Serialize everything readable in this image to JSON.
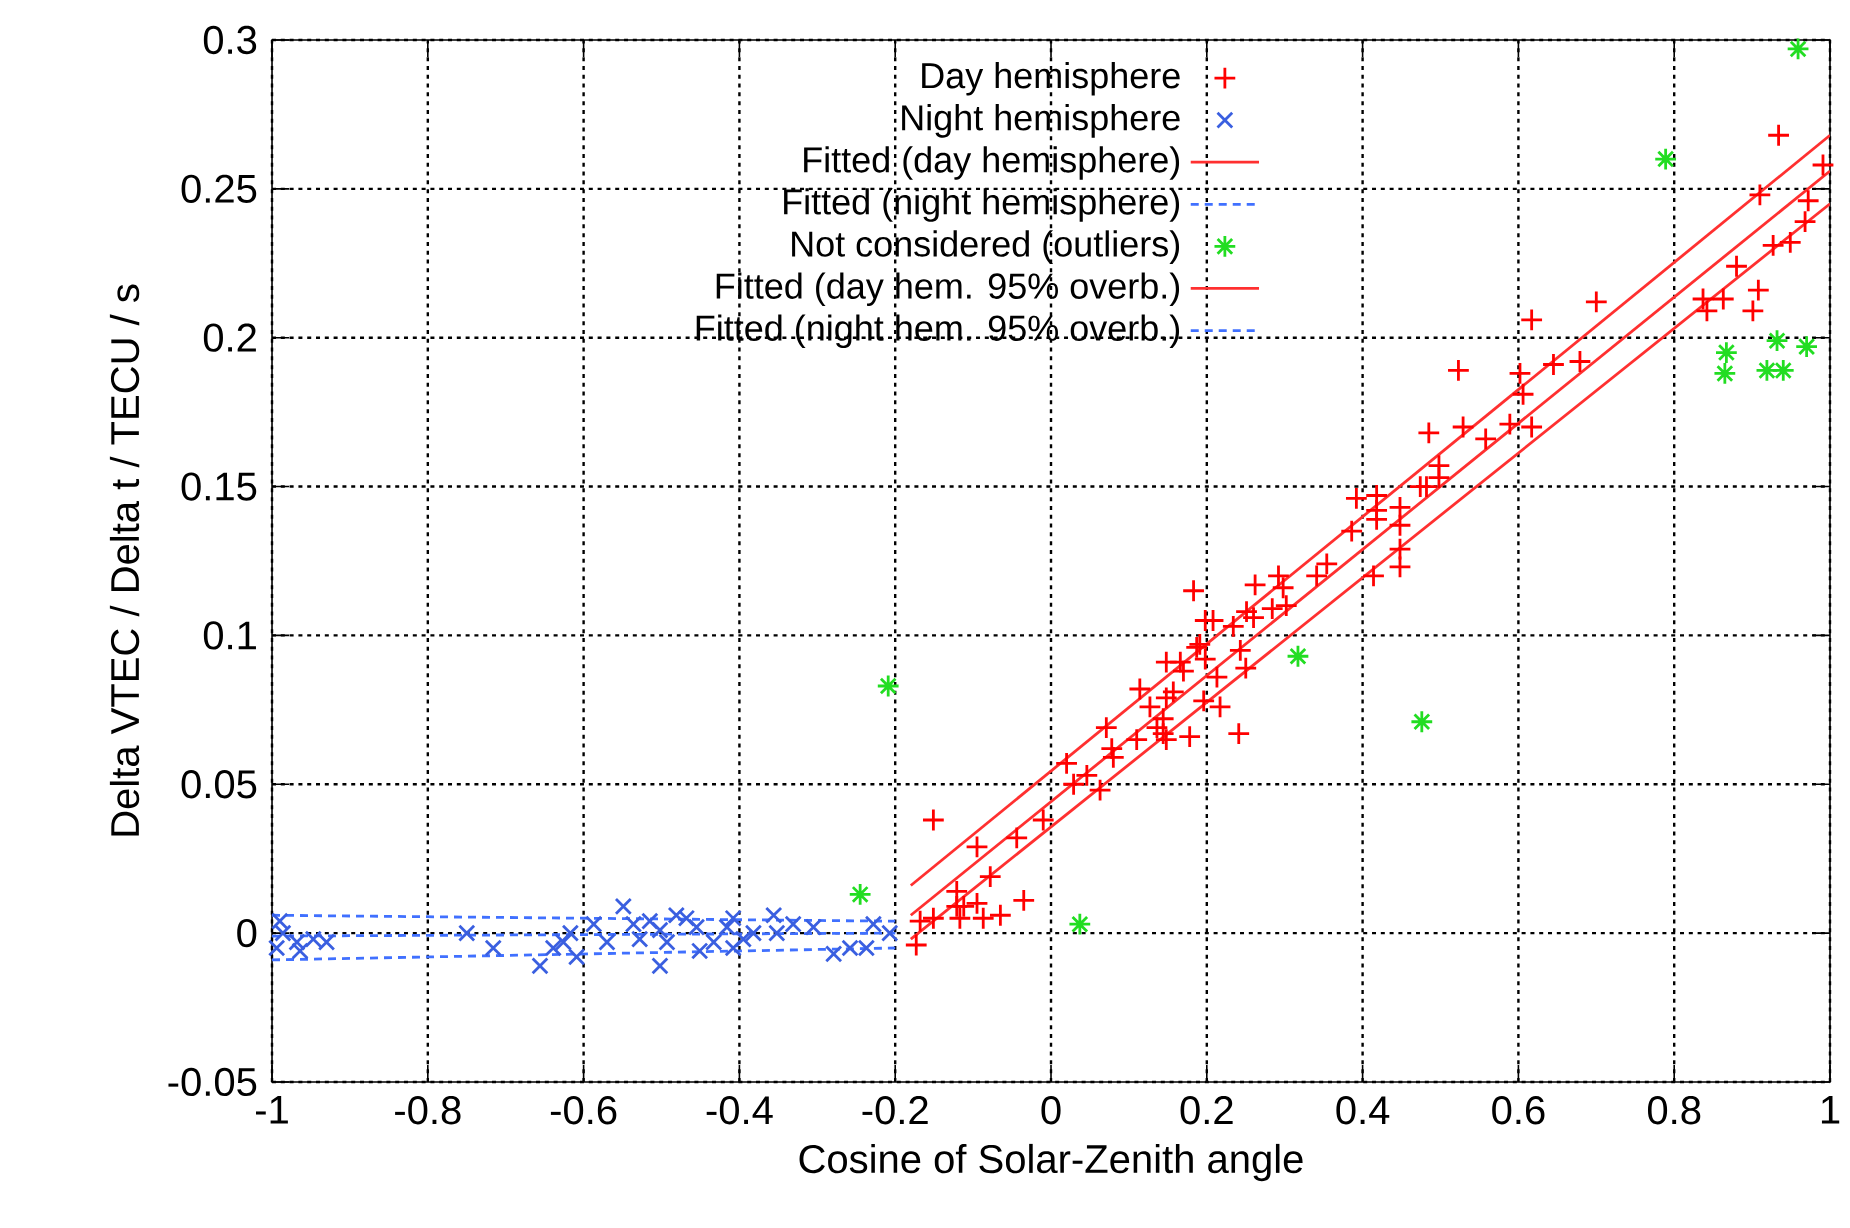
{
  "chart_data": {
    "type": "scatter",
    "xlabel": "Cosine of Solar-Zenith angle",
    "ylabel": "Delta VTEC / Delta t / TECU / s",
    "xlim": [
      -1,
      1
    ],
    "ylim": [
      -0.05,
      0.3
    ],
    "xticks": [
      -1,
      -0.8,
      -0.6,
      -0.4,
      -0.2,
      0,
      0.2,
      0.4,
      0.6,
      0.8,
      1
    ],
    "yticks": [
      -0.05,
      0,
      0.05,
      0.1,
      0.15,
      0.2,
      0.25,
      0.3
    ],
    "grid": true,
    "legend": "top",
    "series": [
      {
        "name": "Day hemisphere",
        "marker": "plus",
        "color": "#ff0000",
        "x": [
          -0.173,
          -0.168,
          -0.151,
          -0.151,
          -0.121,
          -0.121,
          -0.117,
          -0.112,
          -0.095,
          -0.095,
          -0.087,
          -0.078,
          -0.065,
          -0.044,
          -0.035,
          -0.01,
          0.02,
          0.029,
          0.046,
          0.063,
          0.071,
          0.078,
          0.08,
          0.11,
          0.114,
          0.127,
          0.136,
          0.144,
          0.144,
          0.148,
          0.148,
          0.148,
          0.157,
          0.166,
          0.17,
          0.178,
          0.183,
          0.187,
          0.191,
          0.198,
          0.198,
          0.196,
          0.208,
          0.213,
          0.217,
          0.234,
          0.241,
          0.243,
          0.25,
          0.251,
          0.26,
          0.262,
          0.284,
          0.292,
          0.298,
          0.302,
          0.341,
          0.354,
          0.386,
          0.392,
          0.418,
          0.418,
          0.418,
          0.448,
          0.448,
          0.448,
          0.448,
          0.414,
          0.474,
          0.482,
          0.498,
          0.498,
          0.485,
          0.523,
          0.529,
          0.558,
          0.589,
          0.602,
          0.606,
          0.617,
          0.617,
          0.645,
          0.679,
          0.7,
          0.837,
          0.842,
          0.863,
          0.88,
          0.901,
          0.908,
          0.927,
          0.949,
          0.91,
          0.934,
          0.968,
          0.972,
          0.991
        ],
        "values": [
          -0.004,
          0.004,
          0.005,
          0.038,
          0.014,
          0.009,
          0.005,
          0.009,
          0.029,
          0.01,
          0.005,
          0.019,
          0.006,
          0.032,
          0.011,
          0.038,
          0.057,
          0.05,
          0.053,
          0.048,
          0.069,
          0.062,
          0.059,
          0.065,
          0.082,
          0.076,
          0.069,
          0.067,
          0.072,
          0.065,
          0.079,
          0.091,
          0.081,
          0.091,
          0.088,
          0.066,
          0.115,
          0.096,
          0.097,
          0.105,
          0.092,
          0.078,
          0.105,
          0.086,
          0.076,
          0.103,
          0.067,
          0.095,
          0.089,
          0.108,
          0.106,
          0.117,
          0.109,
          0.12,
          0.116,
          0.11,
          0.12,
          0.124,
          0.135,
          0.146,
          0.147,
          0.142,
          0.139,
          0.143,
          0.137,
          0.129,
          0.123,
          0.12,
          0.15,
          0.15,
          0.157,
          0.153,
          0.168,
          0.189,
          0.17,
          0.166,
          0.171,
          0.188,
          0.181,
          0.17,
          0.206,
          0.191,
          0.192,
          0.212,
          0.213,
          0.209,
          0.213,
          0.224,
          0.209,
          0.216,
          0.231,
          0.232,
          0.248,
          0.268,
          0.239,
          0.246,
          0.258
        ]
      },
      {
        "name": "Night hemisphere",
        "marker": "cross",
        "color": "#3a5fe0",
        "x": [
          -0.99,
          -0.986,
          -0.994,
          -0.968,
          -0.964,
          -0.947,
          -0.93,
          -0.75,
          -0.716,
          -0.656,
          -0.639,
          -0.626,
          -0.617,
          -0.609,
          -0.587,
          -0.57,
          -0.549,
          -0.536,
          -0.528,
          -0.515,
          -0.502,
          -0.502,
          -0.493,
          -0.481,
          -0.468,
          -0.455,
          -0.451,
          -0.433,
          -0.416,
          -0.408,
          -0.408,
          -0.395,
          -0.382,
          -0.356,
          -0.352,
          -0.331,
          -0.305,
          -0.279,
          -0.258,
          -0.237,
          -0.228,
          -0.207
        ],
        "values": [
          0.004,
          0.0,
          -0.005,
          -0.003,
          -0.006,
          -0.002,
          -0.003,
          0.0,
          -0.005,
          -0.011,
          -0.005,
          -0.003,
          0.0,
          -0.008,
          0.003,
          -0.003,
          0.009,
          0.003,
          -0.002,
          0.004,
          0.001,
          -0.011,
          -0.003,
          0.006,
          0.005,
          0.002,
          -0.006,
          -0.003,
          0.002,
          0.005,
          -0.005,
          -0.002,
          0.0,
          0.006,
          0.0,
          0.003,
          0.002,
          -0.007,
          -0.005,
          -0.005,
          0.003,
          0.0
        ]
      },
      {
        "name": "Fitted (day hemisphere)",
        "type": "line",
        "line_style": "solid",
        "color": "#ff3030",
        "x": [
          -0.18,
          1
        ],
        "values": [
          0.006,
          0.256
        ]
      },
      {
        "name": "Fitted (night hemisphere)",
        "type": "line",
        "line_style": "dashed",
        "color": "#4070ff",
        "x": [
          -1,
          -0.2
        ],
        "values": [
          -0.001,
          0.0
        ]
      },
      {
        "name": "Not considered (outliers)",
        "color": "#22dd22",
        "x": [
          -0.209,
          -0.245,
          0.037,
          0.317,
          0.476,
          0.789,
          0.959,
          0.867,
          0.865,
          0.932,
          0.919,
          0.94,
          0.97
        ],
        "values": [
          0.083,
          0.013,
          0.003,
          0.093,
          0.071,
          0.26,
          0.297,
          0.195,
          0.188,
          0.199,
          0.189,
          0.189,
          0.197
        ]
      },
      {
        "name": "Fitted (day hem. 95% overb.)",
        "type": "line",
        "line_style": "solid",
        "color": "#ff3030",
        "x": [
          -0.18,
          1
        ],
        "values": [
          0.016,
          0.268
        ]
      },
      {
        "name": "Fitted (night hem. 95% overb.)",
        "type": "line",
        "line_style": "dashed",
        "color": "#4070ff",
        "x": [
          -1,
          -0.2
        ],
        "values": [
          0.006,
          0.004
        ]
      },
      {
        "type": "line",
        "line_style": "solid",
        "color": "#ff3030",
        "x": [
          -0.18,
          1
        ],
        "values": [
          -0.002,
          0.245
        ]
      },
      {
        "type": "line",
        "line_style": "dashed",
        "color": "#4070ff",
        "x": [
          -1,
          -0.2
        ],
        "values": [
          -0.009,
          -0.005
        ]
      }
    ]
  }
}
